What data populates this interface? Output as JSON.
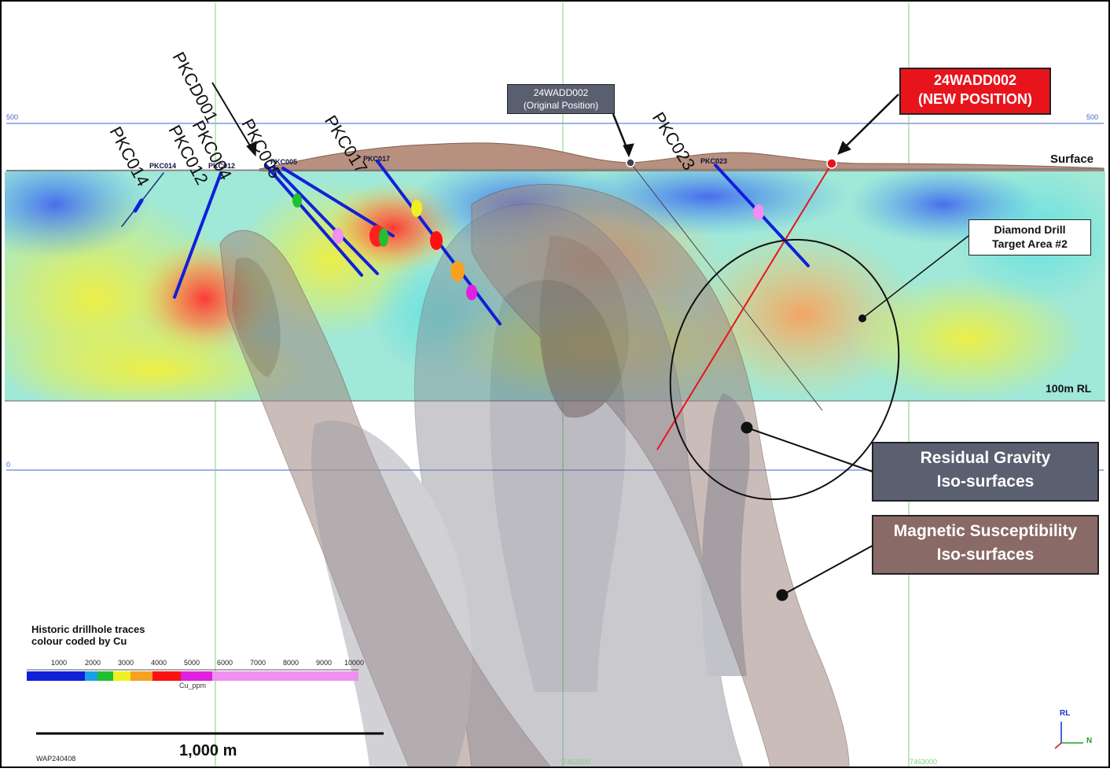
{
  "grid": {
    "left_rl": "500",
    "right_rl": "500",
    "zero": "0",
    "north_1": "7462500",
    "north_2": "7463000"
  },
  "surface_label": "Surface",
  "rl_label": "100m RL",
  "drillhole_labels": {
    "big": [
      "PKC014",
      "PKC012",
      "PKC004",
      "PKCD001",
      "PKC005",
      "PKC017",
      "PKC023"
    ],
    "small": [
      "PKC014",
      "PKC012",
      "PKC005",
      "PKC017",
      "PKC023"
    ]
  },
  "callouts": {
    "original": {
      "line1": "24WADD002",
      "line2": "(Original Position)"
    },
    "new": {
      "line1": "24WADD002",
      "line2": "(NEW POSITION)"
    },
    "target": {
      "line1": "Diamond Drill",
      "line2": "Target Area #2"
    },
    "gravity": {
      "line1": "Residual Gravity",
      "line2": "Iso-surfaces"
    },
    "magnetic": {
      "line1": "Magnetic Susceptibility",
      "line2": "Iso-surfaces"
    }
  },
  "legend": {
    "title_1": "Historic drillhole traces",
    "title_2": "colour coded by Cu",
    "ticks": [
      "1000",
      "2000",
      "3000",
      "4000",
      "5000",
      "6000",
      "7000",
      "8000",
      "9000",
      "10000"
    ],
    "unit": "Cu_ppm",
    "colors": [
      "#1020d8",
      "#1020d8",
      "#1aa0e8",
      "#20c030",
      "#f0f020",
      "#f8a020",
      "#ff1010",
      "#e020e0",
      "#f090f0"
    ]
  },
  "scale_bar": {
    "label": "1,000 m"
  },
  "figure_id": "WAP240408",
  "axis_widget": {
    "up": "RL",
    "right": "N"
  },
  "colors": {
    "new_position_red": "#e8141c",
    "gravity_box": "#5b6070",
    "magnetic_box": "#8a6a66",
    "grid_blue": "#4060d0",
    "grid_green": "#80d080"
  }
}
